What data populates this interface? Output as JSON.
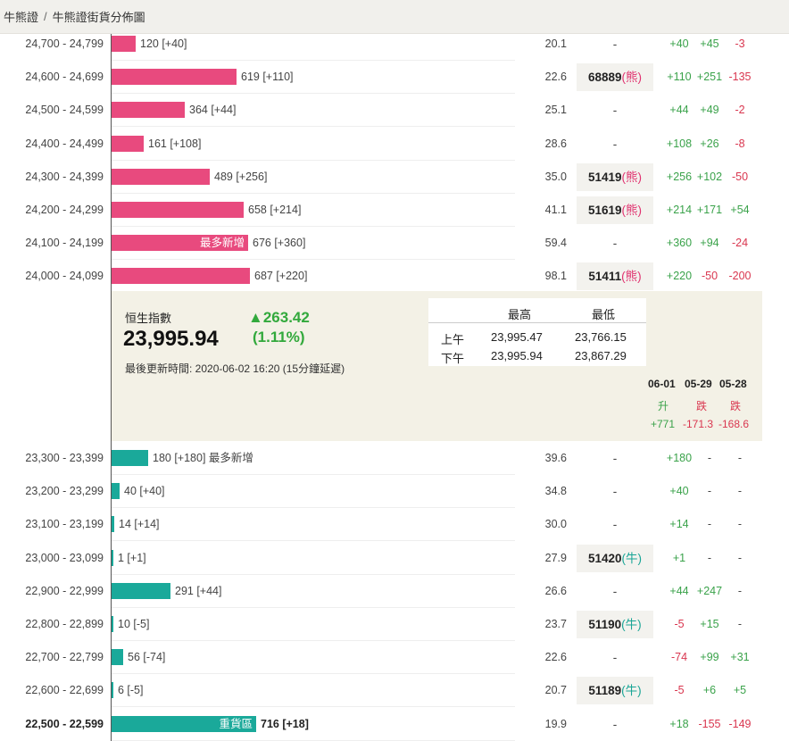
{
  "breadcrumb": {
    "root": "牛熊證",
    "separator": "/",
    "current": "牛熊證街貨分佈圖"
  },
  "colors": {
    "bear": "#e84a7e",
    "bull": "#1aa99a",
    "up": "#3aa24a",
    "down": "#d9364f"
  },
  "bear_rows": [
    {
      "range": "24,700 - 24,799",
      "qty": 120,
      "label": "120 [+40]",
      "pct": "20.1",
      "code": "-",
      "code_tag": "",
      "c1": "+40",
      "c2": "+45",
      "c3": "-3"
    },
    {
      "range": "24,600 - 24,699",
      "qty": 619,
      "label": "619 [+110]",
      "pct": "22.6",
      "code": "68889",
      "code_tag": "(熊)",
      "c1": "+110",
      "c2": "+251",
      "c3": "-135"
    },
    {
      "range": "24,500 - 24,599",
      "qty": 364,
      "label": "364 [+44]",
      "pct": "25.1",
      "code": "-",
      "code_tag": "",
      "c1": "+44",
      "c2": "+49",
      "c3": "-2"
    },
    {
      "range": "24,400 - 24,499",
      "qty": 161,
      "label": "161 [+108]",
      "pct": "28.6",
      "code": "-",
      "code_tag": "",
      "c1": "+108",
      "c2": "+26",
      "c3": "-8"
    },
    {
      "range": "24,300 - 24,399",
      "qty": 489,
      "label": "489 [+256]",
      "pct": "35.0",
      "code": "51419",
      "code_tag": "(熊)",
      "c1": "+256",
      "c2": "+102",
      "c3": "-50"
    },
    {
      "range": "24,200 - 24,299",
      "qty": 658,
      "label": "658 [+214]",
      "pct": "41.1",
      "code": "51619",
      "code_tag": "(熊)",
      "c1": "+214",
      "c2": "+171",
      "c3": "+54"
    },
    {
      "range": "24,100 - 24,199",
      "qty": 676,
      "label": "676 [+360]",
      "inner": "最多新增",
      "pct": "59.4",
      "code": "-",
      "code_tag": "",
      "c1": "+360",
      "c2": "+94",
      "c3": "-24"
    },
    {
      "range": "24,000 - 24,099",
      "qty": 687,
      "label": "687 [+220]",
      "pct": "98.1",
      "code": "51411",
      "code_tag": "(熊)",
      "c1": "+220",
      "c2": "-50",
      "c3": "-200"
    }
  ],
  "index": {
    "name": "恒生指數",
    "value": "23,995.94",
    "change": "▲263.42",
    "change_pct": "(1.11%)",
    "updated": "最後更新時間: 2020-06-02 16:20 (15分鐘延遲)",
    "high_label": "最高",
    "low_label": "最低",
    "am_label": "上午",
    "pm_label": "下午",
    "am_high": "23,995.47",
    "am_low": "23,766.15",
    "pm_high": "23,995.94",
    "pm_low": "23,867.29",
    "dates": [
      "06-01",
      "05-29",
      "05-28"
    ],
    "directions": [
      "升",
      "跌",
      "跌"
    ],
    "totals": [
      "+771",
      "-171.3",
      "-168.6"
    ]
  },
  "bull_rows": [
    {
      "range": "23,300 - 23,399",
      "qty": 180,
      "label": "180 [+180] 最多新增",
      "pct": "39.6",
      "code": "-",
      "code_tag": "",
      "c1": "+180",
      "c2": "-",
      "c3": "-"
    },
    {
      "range": "23,200 - 23,299",
      "qty": 40,
      "label": "40 [+40]",
      "pct": "34.8",
      "code": "-",
      "code_tag": "",
      "c1": "+40",
      "c2": "-",
      "c3": "-"
    },
    {
      "range": "23,100 - 23,199",
      "qty": 14,
      "label": "14 [+14]",
      "pct": "30.0",
      "code": "-",
      "code_tag": "",
      "c1": "+14",
      "c2": "-",
      "c3": "-"
    },
    {
      "range": "23,000 - 23,099",
      "qty": 1,
      "label": "1 [+1]",
      "pct": "27.9",
      "code": "51420",
      "code_tag": "(牛)",
      "c1": "+1",
      "c2": "-",
      "c3": "-"
    },
    {
      "range": "22,900 - 22,999",
      "qty": 291,
      "label": "291 [+44]",
      "pct": "26.6",
      "code": "-",
      "code_tag": "",
      "c1": "+44",
      "c2": "+247",
      "c3": "-"
    },
    {
      "range": "22,800 - 22,899",
      "qty": 10,
      "label": "10 [-5]",
      "pct": "23.7",
      "code": "51190",
      "code_tag": "(牛)",
      "c1": "-5",
      "c2": "+15",
      "c3": "-"
    },
    {
      "range": "22,700 - 22,799",
      "qty": 56,
      "label": "56 [-74]",
      "pct": "22.6",
      "code": "-",
      "code_tag": "",
      "c1": "-74",
      "c2": "+99",
      "c3": "+31"
    },
    {
      "range": "22,600 - 22,699",
      "qty": 6,
      "label": "6 [-5]",
      "pct": "20.7",
      "code": "51189",
      "code_tag": "(牛)",
      "c1": "-5",
      "c2": "+6",
      "c3": "+5"
    },
    {
      "range": "22,500 - 22,599",
      "qty": 716,
      "label": "716 [+18]",
      "inner": "重貨區",
      "bold": true,
      "pct": "19.9",
      "code": "-",
      "code_tag": "",
      "c1": "+18",
      "c2": "-155",
      "c3": "-149"
    }
  ]
}
